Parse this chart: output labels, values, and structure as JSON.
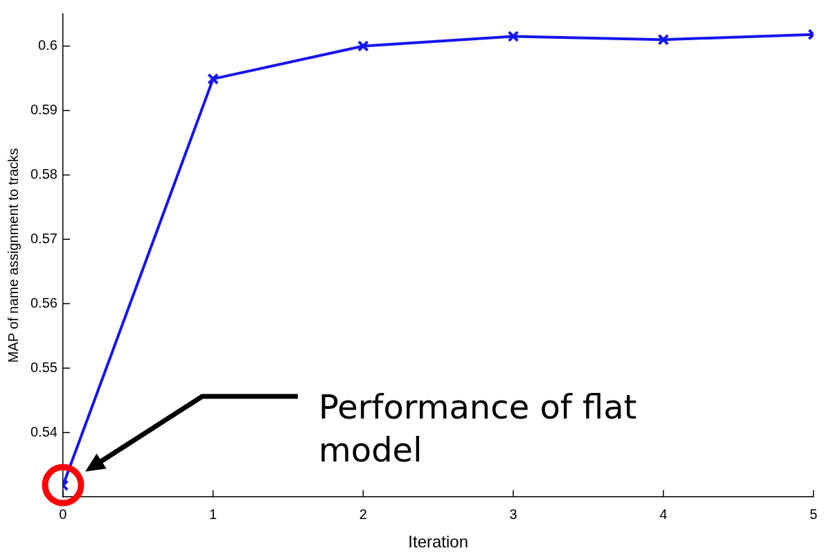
{
  "chart_data": {
    "type": "line",
    "xlabel": "Iteration",
    "ylabel": "MAP of name assignment to tracks",
    "x": [
      0,
      1,
      2,
      3,
      4,
      5
    ],
    "series": [
      {
        "color": "#1515f0",
        "values": [
          0.5318,
          0.5949,
          0.6,
          0.6015,
          0.601,
          0.6018
        ]
      }
    ],
    "xlim": [
      0,
      5
    ],
    "xticks": [
      0,
      1,
      2,
      3,
      4,
      5
    ],
    "ylim": [
      0.53,
      0.605
    ],
    "yticks": [
      0.54,
      0.55,
      0.56,
      0.57,
      0.58,
      0.59,
      0.6
    ],
    "grid": false,
    "legend": false,
    "marker": "cross",
    "line_style": "solid",
    "annotations": [
      "Performance of flat model"
    ]
  }
}
